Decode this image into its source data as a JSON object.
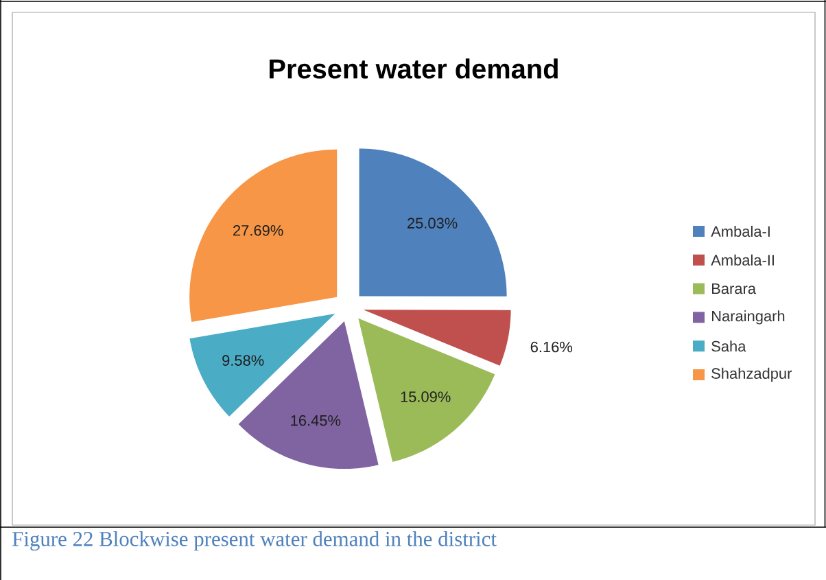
{
  "chart_data": {
    "type": "pie",
    "title": "Present water demand",
    "categories": [
      "Ambala-I",
      "Ambala-II",
      "Barara",
      "Naraingarh",
      "Saha",
      "Shahzadpur"
    ],
    "values": [
      25.03,
      6.16,
      15.09,
      16.45,
      9.58,
      27.69
    ],
    "colors": [
      "#4f81bd",
      "#c0504d",
      "#9bbb59",
      "#8064a2",
      "#4bacc6",
      "#f79646"
    ],
    "value_labels": [
      "25.03%",
      "6.16%",
      "15.09%",
      "16.45%",
      "9.58%",
      "27.69%"
    ],
    "legend": "right",
    "annotations": [
      "Figure 22 Blockwise present water demand in the district"
    ]
  }
}
